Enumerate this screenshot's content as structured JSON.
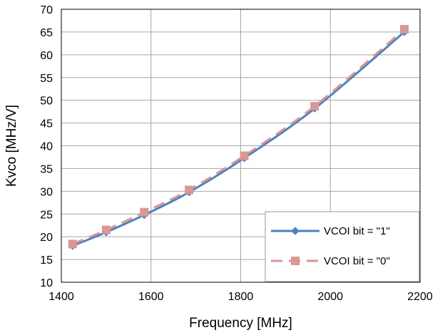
{
  "chart_data": {
    "type": "line",
    "xlabel": "Frequency [MHz]",
    "ylabel": "Kvco [MHz/V]",
    "xlim": [
      1400,
      2200
    ],
    "ylim": [
      10,
      70
    ],
    "xticks": [
      "1400",
      "1600",
      "1800",
      "2000",
      "2200"
    ],
    "yticks": [
      "10",
      "15",
      "20",
      "25",
      "30",
      "35",
      "40",
      "45",
      "50",
      "55",
      "60",
      "65",
      "70"
    ],
    "grid": true,
    "legend_position": "bottom-right",
    "series": [
      {
        "name": "VCOI bit = \"1\"",
        "color": "#4F81BD",
        "line_style": "solid",
        "marker": "diamond",
        "x": [
          1425,
          1500,
          1585,
          1685,
          1808,
          1965,
          2165
        ],
        "y": [
          18.0,
          21.0,
          24.8,
          29.8,
          37.3,
          48.2,
          65.0
        ]
      },
      {
        "name": "VCOI bit = \"0\"",
        "color": "#D99795",
        "line_style": "dashed",
        "marker": "square",
        "x": [
          1425,
          1500,
          1585,
          1685,
          1808,
          1965,
          2165
        ],
        "y": [
          18.4,
          21.5,
          25.4,
          30.3,
          37.8,
          48.7,
          65.6
        ]
      }
    ]
  }
}
